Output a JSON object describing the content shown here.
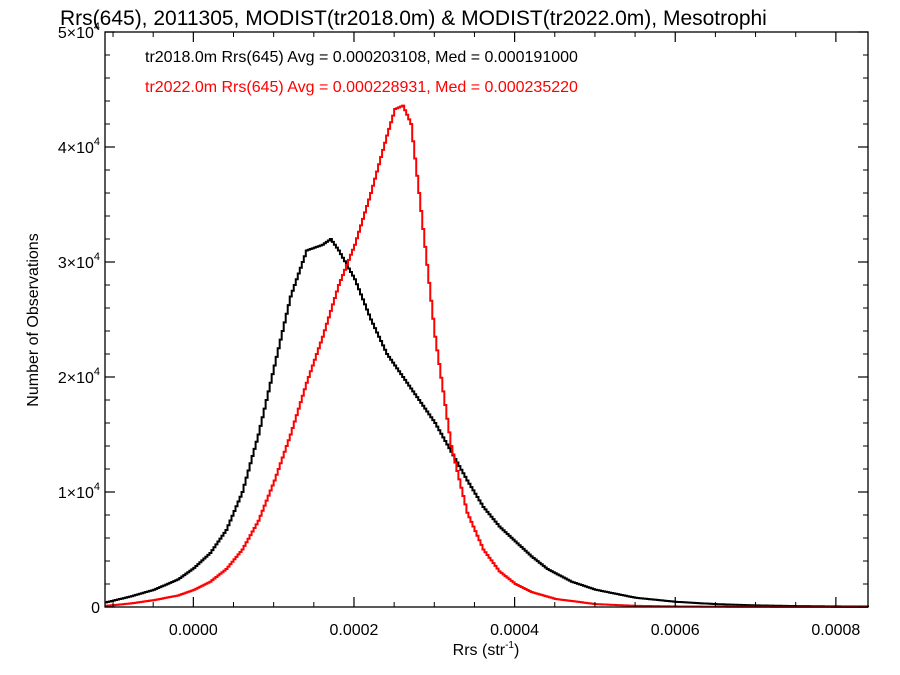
{
  "chart_data": {
    "type": "line",
    "title": "Rrs(645), 2011305, MODIST(tr2018.0m) & MODIST(tr2022.0m), Mesotrophi",
    "xlabel": "Rrs (str",
    "xlabel_sup": "-1",
    "xlabel_close": ")",
    "ylabel": "Number of Observations",
    "xlim": [
      -0.00011,
      0.00084
    ],
    "ylim": [
      0,
      50000
    ],
    "x_ticks": [
      {
        "value": 0.0,
        "label": "0.0000"
      },
      {
        "value": 0.0002,
        "label": "0.0002"
      },
      {
        "value": 0.0004,
        "label": "0.0004"
      },
      {
        "value": 0.0006,
        "label": "0.0006"
      },
      {
        "value": 0.0008,
        "label": "0.0008"
      }
    ],
    "y_ticks": [
      {
        "value": 0,
        "mant": "0",
        "exp": ""
      },
      {
        "value": 10000,
        "mant": "1×10",
        "exp": "4"
      },
      {
        "value": 20000,
        "mant": "2×10",
        "exp": "4"
      },
      {
        "value": 30000,
        "mant": "3×10",
        "exp": "4"
      },
      {
        "value": 40000,
        "mant": "4×10",
        "exp": "4"
      },
      {
        "value": 50000,
        "mant": "5×10",
        "exp": "4"
      }
    ],
    "annotations": [
      {
        "text": "tr2018.0m Rrs(645) Avg = 0.000203108, Med = 0.000191000",
        "color": "#000000"
      },
      {
        "text": "tr2022.0m Rrs(645) Avg = 0.000228931, Med = 0.000235220",
        "color": "#ff0000"
      }
    ],
    "series": [
      {
        "color": "#000000",
        "x": [
          -0.00011,
          -8e-05,
          -5e-05,
          -2e-05,
          0.0,
          2e-05,
          4e-05,
          6e-05,
          8e-05,
          0.0001,
          0.00012,
          0.00014,
          0.00016,
          0.00017,
          0.00018,
          0.0002,
          0.00022,
          0.00024,
          0.00026,
          0.00028,
          0.0003,
          0.00032,
          0.00034,
          0.00036,
          0.00038,
          0.0004,
          0.00042,
          0.00044,
          0.00047,
          0.0005,
          0.00055,
          0.0006,
          0.00065,
          0.0007,
          0.00075,
          0.0008,
          0.00084
        ],
        "y": [
          400,
          900,
          1500,
          2400,
          3400,
          4700,
          6700,
          10000,
          15000,
          21000,
          27000,
          31000,
          31500,
          32000,
          31000,
          28500,
          25000,
          22000,
          20000,
          18000,
          16000,
          13500,
          11000,
          8700,
          7000,
          5700,
          4400,
          3300,
          2200,
          1500,
          800,
          450,
          250,
          140,
          80,
          50,
          40
        ]
      },
      {
        "color": "#ff0000",
        "x": [
          -0.00011,
          -8e-05,
          -5e-05,
          -2e-05,
          0.0,
          2e-05,
          4e-05,
          6e-05,
          8e-05,
          0.0001,
          0.00012,
          0.00014,
          0.00016,
          0.00018,
          0.0002,
          0.00022,
          0.00024,
          0.00025,
          0.00026,
          0.00027,
          0.00028,
          0.0003,
          0.00032,
          0.00034,
          0.00036,
          0.00038,
          0.0004,
          0.00042,
          0.00045,
          0.0005,
          0.00055,
          0.0006,
          0.00065,
          0.0007,
          0.00075,
          0.0008,
          0.00084
        ],
        "y": [
          100,
          300,
          600,
          1000,
          1500,
          2200,
          3300,
          5000,
          7500,
          11000,
          15000,
          19500,
          23500,
          28000,
          31500,
          36000,
          41000,
          43300,
          43600,
          42000,
          36000,
          23500,
          14000,
          8200,
          5000,
          3100,
          2000,
          1300,
          700,
          250,
          100,
          50,
          30,
          20,
          10,
          5,
          0
        ]
      }
    ]
  }
}
